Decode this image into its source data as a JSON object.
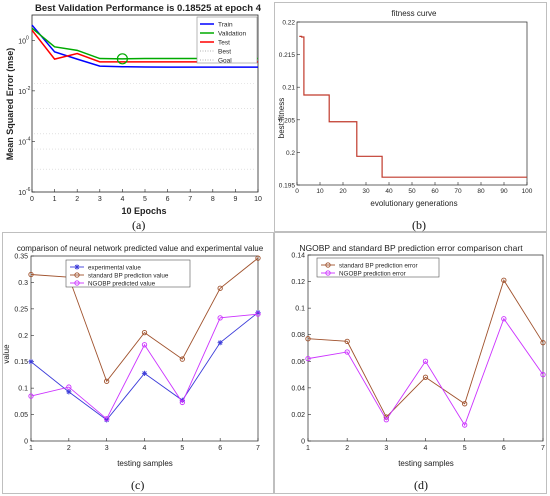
{
  "chart_data": [
    {
      "id": "a",
      "type": "line",
      "title": "Best Validation Performance is 0.18525 at epoch 4",
      "xlabel": "10 Epochs",
      "ylabel": "Mean Squared Error  (mse)",
      "x_scale": "linear",
      "y_scale": "log",
      "xlim": [
        0,
        10
      ],
      "ylim": [
        1e-06,
        10
      ],
      "xticks": [
        0,
        1,
        2,
        3,
        4,
        5,
        6,
        7,
        8,
        9,
        10
      ],
      "xtick_labels": [
        "0",
        "1",
        "2",
        "3",
        "4",
        "5",
        "6",
        "7",
        "8",
        "9",
        "10"
      ],
      "yticks": [
        1,
        0.01,
        0.0001,
        1e-06
      ],
      "ytick_labels": [
        "10^0",
        "10^-2",
        "10^-4",
        "10^-6"
      ],
      "x": [
        0,
        1,
        2,
        3,
        4,
        5,
        6,
        7,
        8,
        9,
        10
      ],
      "series": [
        {
          "name": "Train",
          "color": "#0000ff",
          "values": [
            4,
            0.35,
            0.18,
            0.095,
            0.09,
            0.088,
            0.087,
            0.087,
            0.087,
            0.087,
            0.087
          ]
        },
        {
          "name": "Validation",
          "color": "#00aa00",
          "values": [
            3,
            0.55,
            0.4,
            0.19,
            0.185,
            0.19,
            0.19,
            0.19,
            0.19,
            0.19,
            0.19
          ]
        },
        {
          "name": "Test",
          "color": "#ff0000",
          "values": [
            2.5,
            0.18,
            0.3,
            0.14,
            0.14,
            0.14,
            0.14,
            0.14,
            0.14,
            0.14,
            0.14
          ]
        }
      ],
      "best": {
        "x": 4,
        "y": 0.18525
      },
      "goal": 0,
      "legend": [
        "Train",
        "Validation",
        "Test",
        "Best",
        "Goal"
      ],
      "legend_position": "top-right",
      "grid": false,
      "caption": "(a)"
    },
    {
      "id": "b",
      "type": "line",
      "title": "fitness curve",
      "xlabel": "evolutionary generations",
      "ylabel": "best fitness",
      "xlim": [
        0,
        100
      ],
      "ylim": [
        0.195,
        0.22
      ],
      "xticks": [
        0,
        10,
        20,
        30,
        40,
        50,
        60,
        70,
        80,
        90,
        100
      ],
      "yticks": [
        0.195,
        0.2,
        0.205,
        0.21,
        0.215,
        0.22
      ],
      "ytick_labels": [
        "0.195",
        "0.2",
        "0.205",
        "0.21",
        "0.215",
        "0.22"
      ],
      "series": [
        {
          "name": "",
          "color": "#c0392b",
          "x": [
            1,
            2,
            2,
            3,
            3,
            14,
            14,
            26,
            26,
            37,
            37,
            100
          ],
          "values": [
            0.2178,
            0.2178,
            0.2177,
            0.2177,
            0.2088,
            0.2088,
            0.2047,
            0.2047,
            0.1994,
            0.1994,
            0.1962,
            0.1962
          ]
        }
      ],
      "grid": false,
      "caption": "(b)"
    },
    {
      "id": "c",
      "type": "line",
      "title": "comparison of neural network predicted value and experimental value",
      "xlabel": "testing samples",
      "ylabel": "value",
      "xlim": [
        1,
        7
      ],
      "ylim": [
        0,
        0.35
      ],
      "xticks": [
        1,
        2,
        3,
        4,
        5,
        6,
        7
      ],
      "yticks": [
        0,
        0.05,
        0.1,
        0.15,
        0.2,
        0.25,
        0.3,
        0.35
      ],
      "ytick_labels": [
        "0",
        "0.05",
        "0.1",
        "0.15",
        "0.2",
        "0.25",
        "0.3",
        "0.35"
      ],
      "x": [
        1,
        2,
        3,
        4,
        5,
        6,
        7
      ],
      "series": [
        {
          "name": "experimental value",
          "color": "#3b3bd9",
          "marker": "*",
          "values": [
            0.15,
            0.093,
            0.04,
            0.128,
            0.077,
            0.186,
            0.243
          ]
        },
        {
          "name": "standard BP prediction value",
          "color": "#a0522d",
          "marker": "o",
          "values": [
            0.315,
            0.31,
            0.113,
            0.205,
            0.155,
            0.289,
            0.346
          ]
        },
        {
          "name": "NGOBP predicted value",
          "color": "#cc33ff",
          "marker": "o",
          "values": [
            0.085,
            0.102,
            0.042,
            0.182,
            0.073,
            0.233,
            0.24
          ]
        }
      ],
      "legend_position": "top-center",
      "grid": false,
      "caption": "(c)"
    },
    {
      "id": "d",
      "type": "line",
      "title": "NGOBP and standard BP prediction error comparison chart",
      "xlabel": "testing samples",
      "ylabel": "",
      "xlim": [
        1,
        7
      ],
      "ylim": [
        0,
        0.14
      ],
      "xticks": [
        1,
        2,
        3,
        4,
        5,
        6,
        7
      ],
      "yticks": [
        0,
        0.02,
        0.04,
        0.06,
        0.08,
        0.1,
        0.12,
        0.14
      ],
      "ytick_labels": [
        "0",
        "0.02",
        "0.04",
        "0.06",
        "0.08",
        "0.1",
        "0.12",
        "0.14"
      ],
      "x": [
        1,
        2,
        3,
        4,
        5,
        6,
        7
      ],
      "series": [
        {
          "name": "standard BP prediction error",
          "color": "#a0522d",
          "marker": "o",
          "values": [
            0.077,
            0.075,
            0.018,
            0.048,
            0.028,
            0.121,
            0.074
          ]
        },
        {
          "name": "NGOBP prediction error",
          "color": "#cc33ff",
          "marker": "o",
          "values": [
            0.062,
            0.067,
            0.016,
            0.06,
            0.012,
            0.092,
            0.05
          ]
        }
      ],
      "legend_position": "top-left",
      "grid": false,
      "caption": "(d)"
    }
  ]
}
